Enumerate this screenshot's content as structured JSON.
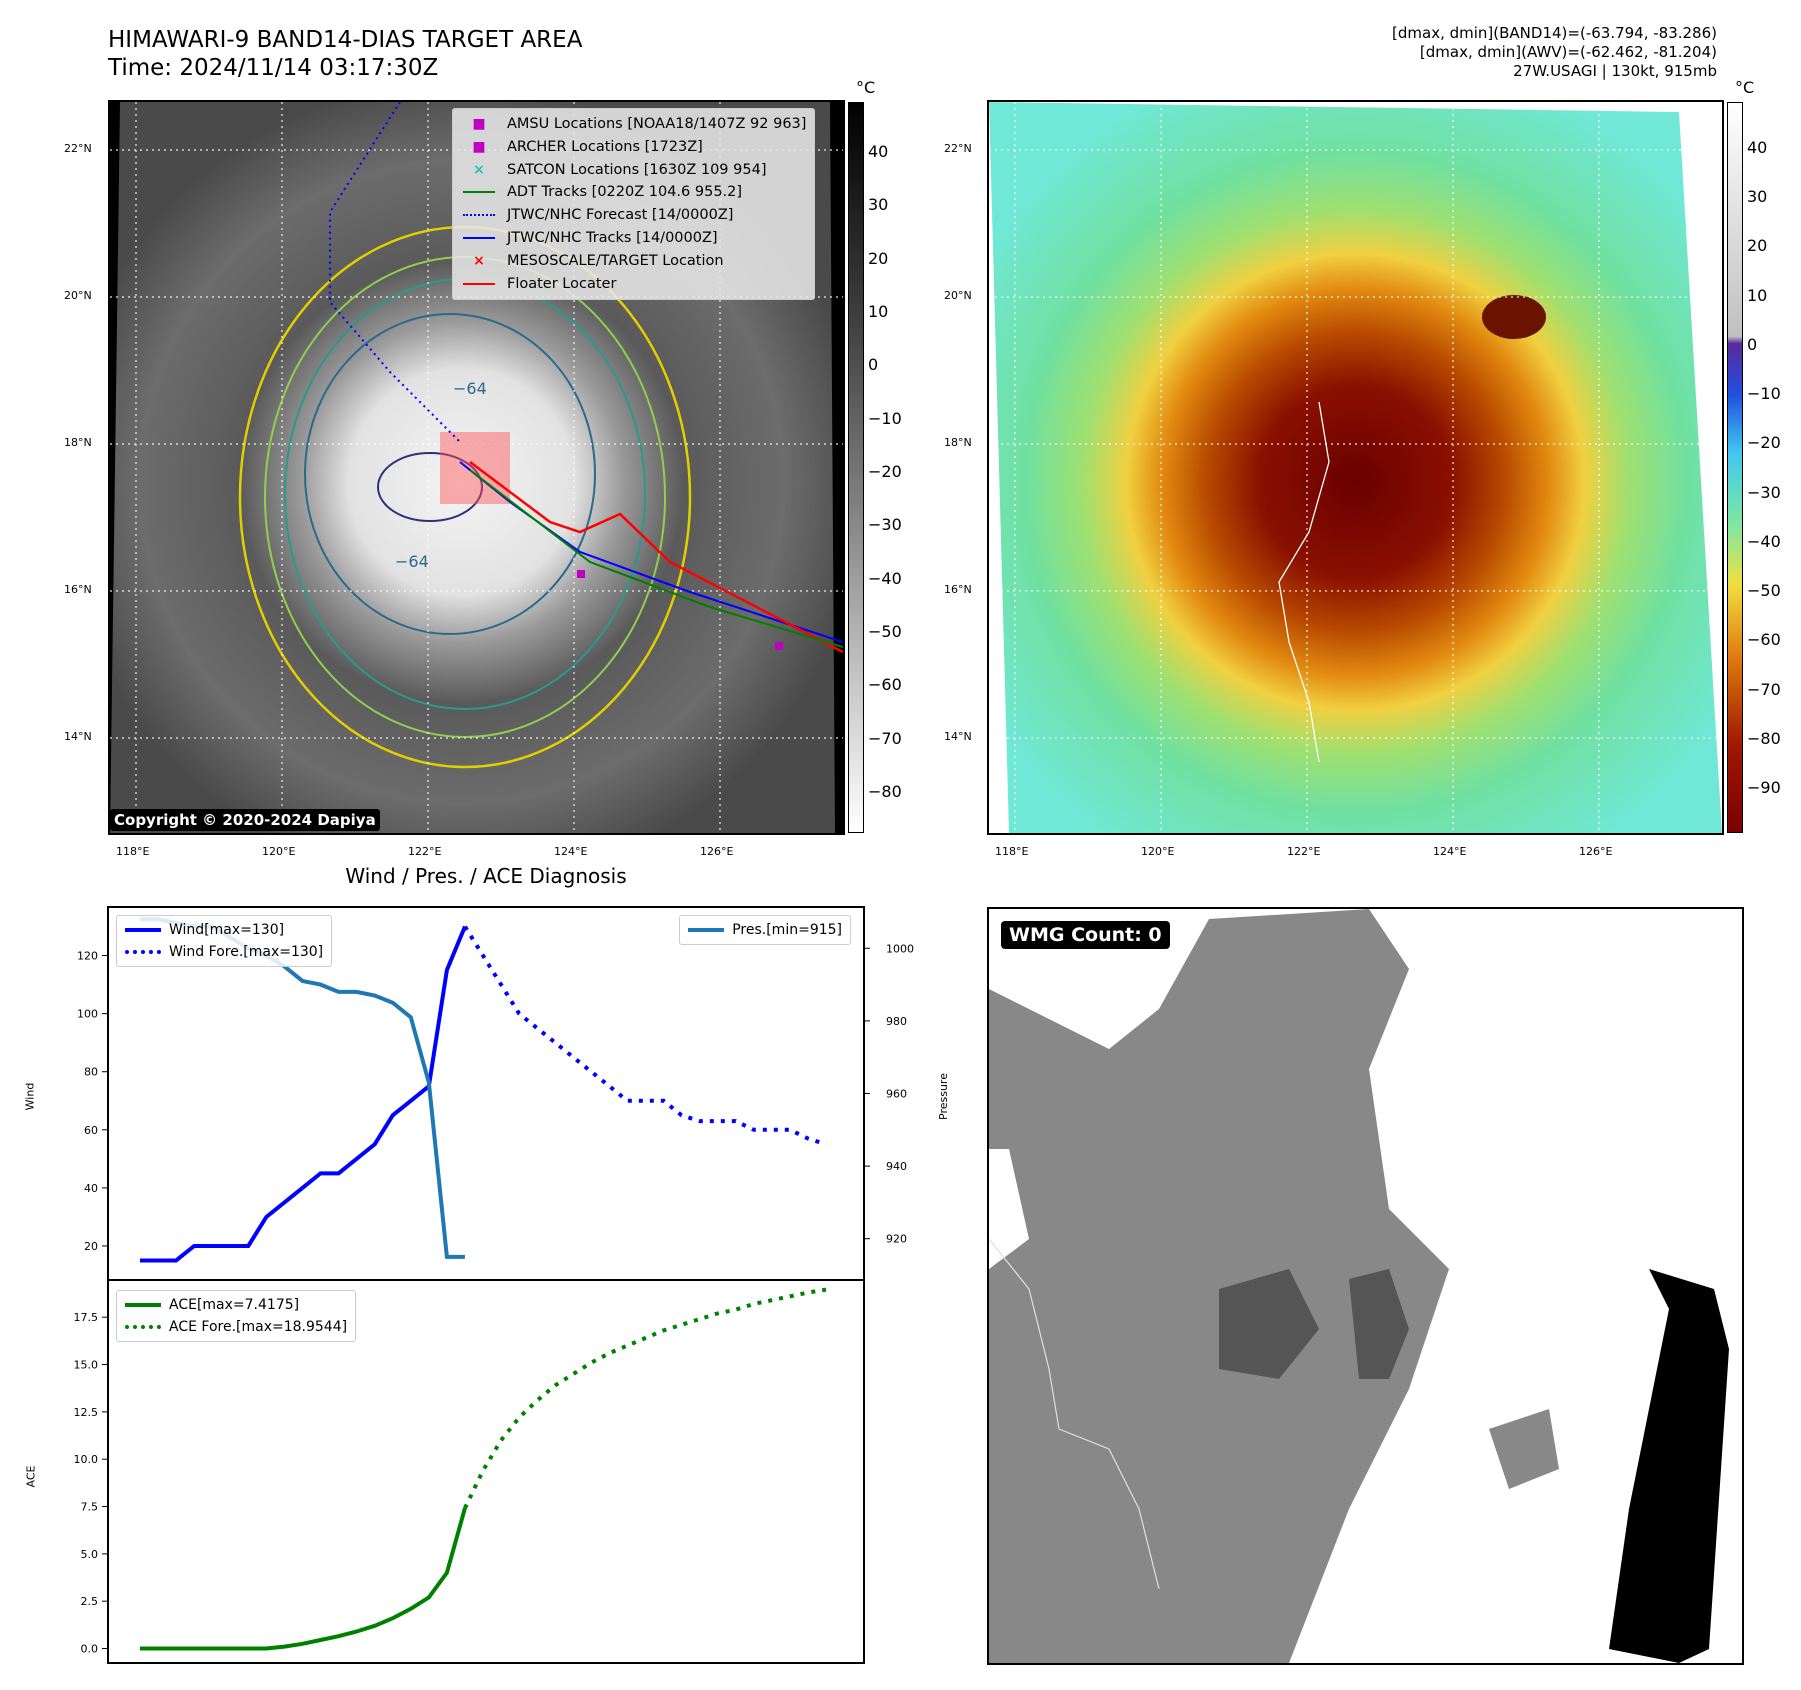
{
  "header": {
    "title_line1": "HIMAWARI-9 BAND14-DIAS TARGET AREA",
    "title_line2": "Time: 2024/11/14 03:17:30Z",
    "info_line1": "[dmax, dmin](BAND14)=(-63.794, -83.286)",
    "info_line2": "[dmax, dmin](AWV)=(-62.462, -81.204)",
    "info_line3": "27W.USAGI | 130kt, 915mb"
  },
  "map_axes": {
    "lat_labels": [
      "22°N",
      "20°N",
      "18°N",
      "16°N",
      "14°N"
    ],
    "lon_labels": [
      "118°E",
      "120°E",
      "122°E",
      "124°E",
      "126°E"
    ]
  },
  "left_map": {
    "colorbar_unit": "°C",
    "colorbar_ticks": [
      "40",
      "30",
      "20",
      "10",
      "0",
      "−10",
      "−20",
      "−30",
      "−40",
      "−50",
      "−60",
      "−70",
      "−80"
    ],
    "contour_labels": [
      "−64",
      "−64"
    ],
    "copyright": "Copyright © 2020-2024 Dapiya",
    "legend": [
      {
        "label": "AMSU Locations [NOAA18/1407Z 92 963]",
        "symbol": "■",
        "color": "#c000c0"
      },
      {
        "label": "ARCHER Locations [1723Z]",
        "symbol": "■",
        "color": "#c000c0"
      },
      {
        "label": "SATCON Locations [1630Z 109 954]",
        "symbol": "×",
        "color": "#20c0c0"
      },
      {
        "label": "ADT Tracks [0220Z 104.6 955.2]",
        "symbol": "line",
        "color": "#008000"
      },
      {
        "label": "JTWC/NHC Forecast [14/0000Z]",
        "symbol": "dot",
        "color": "#0000ff"
      },
      {
        "label": "JTWC/NHC Tracks [14/0000Z]",
        "symbol": "line-dot",
        "color": "#0000ff"
      },
      {
        "label": "MESOSCALE/TARGET Location",
        "symbol": "×",
        "color": "#ff0000"
      },
      {
        "label": "Floater Locater",
        "symbol": "line",
        "color": "#ff0000"
      }
    ]
  },
  "right_map": {
    "colorbar_unit": "°C",
    "colorbar_ticks": [
      "40",
      "30",
      "20",
      "10",
      "0",
      "−10",
      "−20",
      "−30",
      "−40",
      "−50",
      "−60",
      "−70",
      "−80",
      "−90"
    ]
  },
  "wmg_panel": {
    "badge": "WMG Count: 0"
  },
  "chart_data": [
    {
      "type": "line",
      "title": "Wind / Pres. / ACE Diagnosis",
      "ylabel": "Wind",
      "y2label": "Pressure",
      "ylim": [
        10,
        135
      ],
      "y2lim": [
        910,
        1010
      ],
      "yticks": [
        20,
        40,
        60,
        80,
        100,
        120
      ],
      "y2ticks": [
        920,
        940,
        960,
        980,
        1000
      ],
      "series": [
        {
          "name": "Wind[max=130]",
          "color": "#0000ff",
          "style": "solid",
          "x": [
            0,
            1,
            2,
            3,
            4,
            5,
            6,
            7,
            8,
            9,
            10,
            11,
            12,
            13,
            14,
            15,
            16,
            17,
            18
          ],
          "values": [
            15,
            15,
            15,
            20,
            20,
            20,
            20,
            30,
            35,
            40,
            45,
            45,
            50,
            55,
            65,
            70,
            75,
            115,
            130
          ]
        },
        {
          "name": "Wind Fore.[max=130]",
          "color": "#0000ff",
          "style": "dotted",
          "x": [
            18,
            19,
            20,
            21,
            22,
            23,
            24,
            25,
            26,
            27,
            28,
            29,
            30,
            31,
            32,
            33,
            34,
            35,
            36,
            37,
            38
          ],
          "values": [
            130,
            120,
            110,
            100,
            95,
            90,
            85,
            80,
            75,
            70,
            70,
            70,
            65,
            63,
            63,
            63,
            60,
            60,
            60,
            57,
            55
          ]
        },
        {
          "name": "Pres.[min=915]",
          "color": "#1f77b4",
          "style": "solid",
          "axis": "y2",
          "x": [
            0,
            1,
            2,
            3,
            4,
            5,
            6,
            7,
            8,
            9,
            10,
            11,
            12,
            13,
            14,
            15,
            16,
            17,
            18
          ],
          "values": [
            1008,
            1008,
            1007,
            1006,
            1006,
            1003,
            1000,
            998,
            995,
            991,
            990,
            988,
            988,
            987,
            985,
            981,
            963,
            915,
            915
          ]
        }
      ]
    },
    {
      "type": "line",
      "ylabel": "ACE",
      "ylim": [
        -0.5,
        19.2
      ],
      "yticks": [
        0.0,
        2.5,
        5.0,
        7.5,
        10.0,
        12.5,
        15.0,
        17.5
      ],
      "series": [
        {
          "name": "ACE[max=7.4175]",
          "color": "#008000",
          "style": "solid",
          "x": [
            0,
            1,
            2,
            3,
            4,
            5,
            6,
            7,
            8,
            9,
            10,
            11,
            12,
            13,
            14,
            15,
            16,
            17,
            18
          ],
          "values": [
            0,
            0,
            0,
            0,
            0,
            0,
            0,
            0,
            0.1,
            0.25,
            0.45,
            0.65,
            0.9,
            1.2,
            1.6,
            2.1,
            2.7,
            4.0,
            7.4175
          ]
        },
        {
          "name": "ACE Fore.[max=18.9544]",
          "color": "#008000",
          "style": "dotted",
          "x": [
            18,
            19,
            20,
            21,
            22,
            23,
            24,
            25,
            26,
            27,
            28,
            29,
            30,
            31,
            32,
            33,
            34,
            35,
            36,
            37,
            38
          ],
          "values": [
            7.4175,
            9.4,
            11.0,
            12.2,
            13.1,
            13.9,
            14.5,
            15.1,
            15.6,
            16.0,
            16.4,
            16.8,
            17.1,
            17.4,
            17.7,
            17.9,
            18.2,
            18.4,
            18.6,
            18.8,
            18.9544
          ]
        }
      ]
    }
  ],
  "colors": {
    "wind": "#0000ff",
    "pressure": "#1f77b4",
    "ace": "#008000",
    "floater": "#ff0000"
  }
}
